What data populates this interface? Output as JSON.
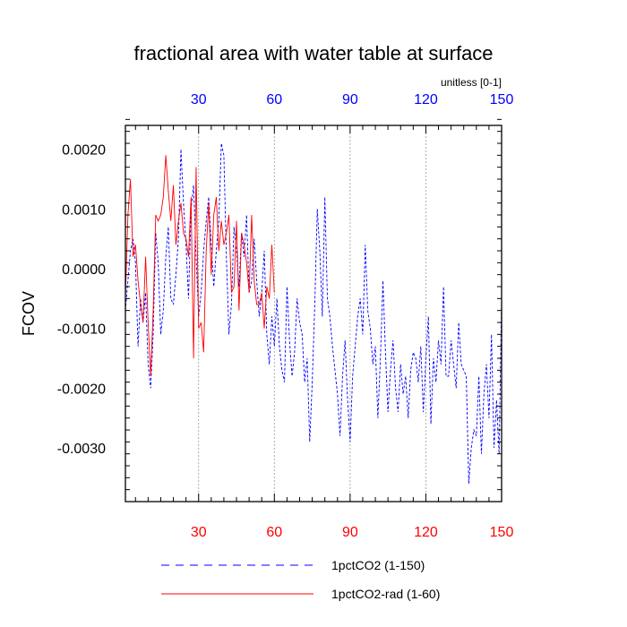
{
  "chart_data": {
    "type": "line",
    "title": "fractional area with water table at surface",
    "units_label": "unitless [0-1]",
    "ylabel": "FCOV",
    "xlabel": "",
    "xlim": [
      1,
      150
    ],
    "ylim": [
      -0.0039,
      0.0024
    ],
    "x_ticks": [
      30,
      60,
      90,
      120,
      150
    ],
    "x_tick_labels": [
      "30",
      "60",
      "90",
      "120",
      "150"
    ],
    "y_ticks": [
      0.002,
      0.001,
      0.0,
      -0.001,
      -0.002,
      -0.003
    ],
    "y_tick_labels": [
      "0.0020",
      "0.0010",
      "0.0000",
      "-0.0010",
      "-0.0020",
      "-0.0030"
    ],
    "y_minor_step": 0.0002,
    "x_minor_step": 5,
    "x_grid": "dotted vertical lines at major x ticks",
    "top_axis_color": "#0000ff",
    "bottom_axis_color": "#ff0000",
    "legend_position": "bottom",
    "series": [
      {
        "name": "1pctCO2 (1-150)",
        "color": "#0000ff",
        "style": "dashed",
        "x_start": 1,
        "values": [
          -0.0007,
          -0.0002,
          0.0003,
          0.0005,
          0.0001,
          -0.0013,
          -0.0005,
          -0.0009,
          -0.0004,
          -0.0016,
          -0.002,
          -0.0011,
          0.0006,
          0.0001,
          -0.0011,
          -0.0007,
          0.0002,
          0.0007,
          -0.0005,
          -0.0006,
          -0.0001,
          0.0005,
          0.002,
          0.0011,
          0.0004,
          -0.0005,
          0.001,
          0.0014,
          0.0002,
          -0.0008,
          -0.0004,
          0.0003,
          0.0008,
          0.0012,
          0.0004,
          -0.0003,
          0.0003,
          0.0008,
          0.0021,
          0.0019,
          0.0002,
          -0.0011,
          -0.0006,
          0.0007,
          0.0003,
          -0.0003,
          0.0006,
          0.0002,
          0.0009,
          -0.0004,
          -0.0002,
          0.0005,
          -0.0002,
          -0.0008,
          -0.0004,
          0.0003,
          -0.0011,
          -0.0016,
          -0.0008,
          -0.0013,
          -0.0005,
          -0.0013,
          -0.0017,
          -0.0019,
          -0.0003,
          -0.0012,
          -0.0018,
          -0.0014,
          -0.0005,
          -0.0009,
          -0.0011,
          -0.0019,
          -0.0015,
          -0.0029,
          -0.0019,
          -0.0006,
          0.001,
          0.0003,
          -0.0008,
          0.0012,
          -0.0005,
          -0.0008,
          -0.0013,
          -0.0017,
          -0.0021,
          -0.0028,
          -0.0018,
          -0.0012,
          -0.0022,
          -0.0029,
          -0.0018,
          -0.0013,
          -0.0008,
          -0.0005,
          -0.0011,
          0.0004,
          -0.0007,
          -0.001,
          -0.0016,
          -0.0013,
          -0.0025,
          -0.0015,
          -0.0002,
          -0.0014,
          -0.0024,
          -0.0017,
          -0.0012,
          -0.002,
          -0.0024,
          -0.0016,
          -0.0021,
          -0.0018,
          -0.0025,
          -0.0017,
          -0.0014,
          -0.0015,
          -0.0019,
          -0.0013,
          -0.0024,
          -0.0015,
          -0.0008,
          -0.0026,
          -0.0015,
          -0.0019,
          -0.0012,
          -0.0016,
          -0.0003,
          -0.0018,
          -0.0018,
          -0.0012,
          -0.0016,
          -0.002,
          -0.0009,
          -0.0016,
          -0.0017,
          -0.0018,
          -0.0036,
          -0.003,
          -0.0027,
          -0.0028,
          -0.0018,
          -0.0031,
          -0.0021,
          -0.0016,
          -0.0025,
          -0.0011,
          -0.003,
          -0.0022,
          -0.0031,
          -0.0005
        ]
      },
      {
        "name": "1pctCO2-rad (1-60)",
        "color": "#ff0000",
        "style": "solid",
        "x_start": 1,
        "values": [
          -0.0005,
          0.0009,
          0.0015,
          0.0002,
          0.0004,
          -0.0002,
          -0.0006,
          -0.0009,
          0.0002,
          -0.0009,
          -0.0018,
          -0.0007,
          0.0009,
          0.0008,
          0.0009,
          0.0012,
          0.0019,
          0.0013,
          0.0008,
          0.0014,
          0.0004,
          0.0008,
          0.0011,
          0.0006,
          0.0005,
          0.0002,
          0.0012,
          -0.0015,
          0.0017,
          -0.001,
          -0.0009,
          -0.0014,
          0.0003,
          0.0011,
          -0.0001,
          0.0009,
          0.0012,
          0.0003,
          0.0008,
          0.0004,
          0.0006,
          0.0009,
          -0.0004,
          -0.0003,
          0.0008,
          -0.0007,
          0.0006,
          0.0004,
          0.0001,
          -0.0004,
          0.0009,
          -0.0002,
          -0.0006,
          -0.0006,
          -0.0004,
          -0.001,
          -0.0003,
          -0.0005,
          0.0004,
          -0.0004
        ]
      }
    ]
  }
}
